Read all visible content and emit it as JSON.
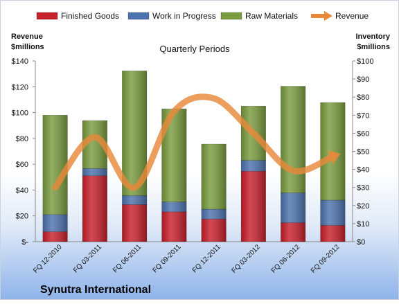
{
  "chart_data": {
    "type": "bar",
    "title": "Quarterly Periods",
    "company": "Synutra International",
    "left_axis": {
      "label_line1": "Revenue",
      "label_line2": "$millions",
      "range": [
        0,
        140
      ],
      "ticks": [
        "$-",
        "$20",
        "$40",
        "$60",
        "$80",
        "$100",
        "$120",
        "$140"
      ]
    },
    "right_axis": {
      "label_line1": "Inventory",
      "label_line2": "$millions",
      "range": [
        0,
        100
      ],
      "ticks": [
        "$0",
        "$10",
        "$20",
        "$30",
        "$40",
        "$50",
        "$60",
        "$70",
        "$80",
        "$90",
        "$100"
      ]
    },
    "categories": [
      "FQ 12-2010",
      "FQ 03-2011",
      "FQ 06-2011",
      "FQ 09-2011",
      "FQ 12-2011",
      "FQ 03-2012",
      "FQ 06-2012",
      "FQ 09-2012"
    ],
    "series": [
      {
        "name": "Finished Goods",
        "kind": "bar",
        "axis": "right",
        "color": "#c8202b",
        "values": [
          5.5,
          36.5,
          20.5,
          16.5,
          12.5,
          39,
          10.5,
          9
        ]
      },
      {
        "name": "Work in Progress",
        "kind": "bar",
        "axis": "right",
        "color": "#4d73ae",
        "values": [
          9.5,
          4,
          5,
          5.5,
          5.5,
          6,
          16.5,
          14
        ]
      },
      {
        "name": "Raw Materials",
        "kind": "bar",
        "axis": "right",
        "color": "#7a9c3f",
        "values": [
          55,
          26.5,
          69,
          51.5,
          36,
          30,
          59,
          54
        ]
      },
      {
        "name": "Revenue",
        "kind": "line",
        "axis": "left",
        "color": "#e8893a",
        "values": [
          42,
          81,
          42,
          101,
          111,
          84,
          55,
          66
        ]
      }
    ],
    "legend_position": "top",
    "grid": false
  }
}
